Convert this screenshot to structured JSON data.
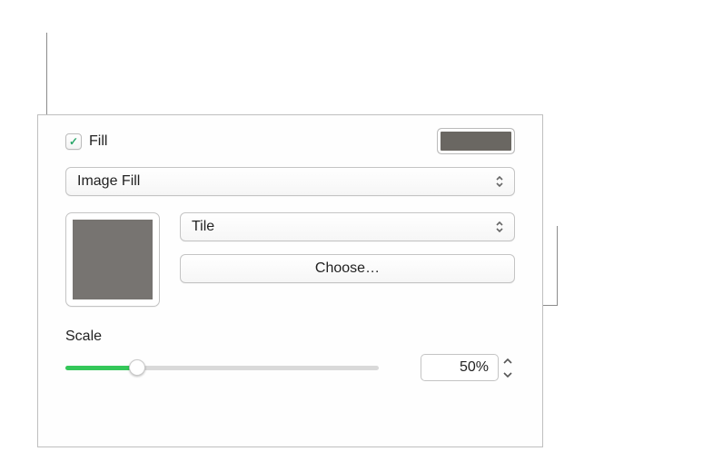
{
  "fill": {
    "checkbox_checked": true,
    "label": "Fill",
    "swatch_color": "#6a6762",
    "type_options_selected": "Image Fill",
    "image_swatch_color": "#777471",
    "tiling_selected": "Tile",
    "choose_label": "Choose…"
  },
  "scale": {
    "label": "Scale",
    "value_text": "50%",
    "value_pct": 23,
    "slider": {
      "track_color": "#d9d9d9",
      "fill_color": "#34c759",
      "knob_color": "#ffffff"
    }
  },
  "colors": {
    "panel_border": "#bfbfbf",
    "control_border": "#c4c4c4",
    "text": "#222222",
    "callout_line": "#8c8c8c"
  }
}
